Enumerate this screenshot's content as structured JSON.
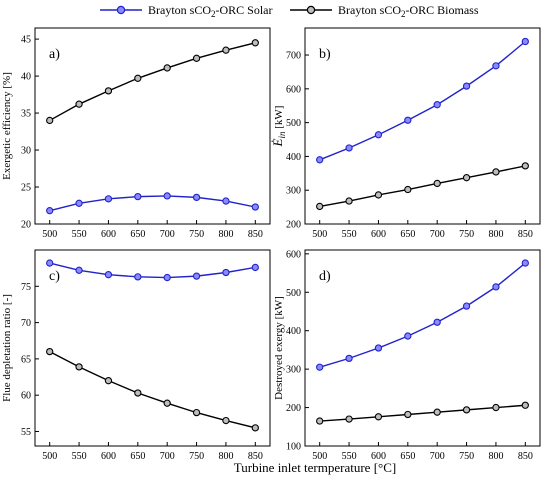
{
  "legend": {
    "placement": "top",
    "entries": [
      {
        "prefix": "Brayton sCO",
        "sub": "2",
        "suffix": "-ORC Solar",
        "color": "#2222cc",
        "marker_fill": "#8a8aff"
      },
      {
        "prefix": "Brayton sCO",
        "sub": "2",
        "suffix": "-ORC Biomass",
        "color": "#000000",
        "marker_fill": "#bdbdbd"
      }
    ]
  },
  "shared_xlabel": "Turbine inlet termperature [°C]",
  "chart_data": [
    {
      "type": "line",
      "panel": "a)",
      "ylabel": "Exergetic efficiency [%]",
      "x": [
        500,
        550,
        600,
        650,
        700,
        750,
        800,
        850
      ],
      "xticks": [
        500,
        550,
        600,
        650,
        700,
        750,
        800,
        850
      ],
      "xlim": [
        475,
        875
      ],
      "ylim": [
        20,
        46.5
      ],
      "yticks": [
        20,
        25,
        30,
        35,
        40,
        45
      ],
      "series": [
        {
          "name": "Brayton sCO2-ORC Solar",
          "values": [
            21.8,
            22.8,
            23.4,
            23.7,
            23.8,
            23.6,
            23.1,
            22.3
          ]
        },
        {
          "name": "Brayton sCO2-ORC Biomass",
          "values": [
            34.0,
            36.2,
            38.0,
            39.7,
            41.1,
            42.4,
            43.5,
            44.5
          ]
        }
      ]
    },
    {
      "type": "line",
      "panel": "b)",
      "ylabel_prefix": "Ė",
      "ylabel_sub": "in",
      "ylabel_suffix": " [kW]",
      "x": [
        500,
        550,
        600,
        650,
        700,
        750,
        800,
        850
      ],
      "xticks": [
        500,
        550,
        600,
        650,
        700,
        750,
        800,
        850
      ],
      "xlim": [
        475,
        875
      ],
      "ylim": [
        200,
        780
      ],
      "yticks": [
        200,
        300,
        400,
        500,
        600,
        700
      ],
      "series": [
        {
          "name": "Brayton sCO2-ORC Solar",
          "values": [
            390,
            425,
            464,
            507,
            553,
            608,
            668,
            740
          ]
        },
        {
          "name": "Brayton sCO2-ORC Biomass",
          "values": [
            252,
            268,
            286,
            302,
            320,
            337,
            354,
            372
          ]
        }
      ]
    },
    {
      "type": "line",
      "panel": "c)",
      "ylabel": "Flue depletation ratio [-]",
      "x": [
        500,
        550,
        600,
        650,
        700,
        750,
        800,
        850
      ],
      "xticks": [
        500,
        550,
        600,
        650,
        700,
        750,
        800,
        850
      ],
      "xlim": [
        475,
        875
      ],
      "ylim": [
        53,
        80
      ],
      "yticks": [
        55,
        60,
        65,
        70,
        75
      ],
      "series": [
        {
          "name": "Brayton sCO2-ORC Solar",
          "values": [
            78.2,
            77.2,
            76.6,
            76.3,
            76.2,
            76.4,
            76.9,
            77.6
          ]
        },
        {
          "name": "Brayton sCO2-ORC Biomass",
          "values": [
            66.0,
            63.9,
            62.0,
            60.3,
            58.9,
            57.6,
            56.5,
            55.5
          ]
        }
      ]
    },
    {
      "type": "line",
      "panel": "d)",
      "ylabel": "Destroyed exergy [kW]",
      "x": [
        500,
        550,
        600,
        650,
        700,
        750,
        800,
        850
      ],
      "xticks": [
        500,
        550,
        600,
        650,
        700,
        750,
        800,
        850
      ],
      "xlim": [
        475,
        875
      ],
      "ylim": [
        100,
        610
      ],
      "yticks": [
        100,
        200,
        300,
        400,
        500,
        600
      ],
      "series": [
        {
          "name": "Brayton sCO2-ORC Solar",
          "values": [
            305,
            328,
            355,
            386,
            422,
            464,
            514,
            576
          ]
        },
        {
          "name": "Brayton sCO2-ORC Biomass",
          "values": [
            165,
            170,
            176,
            182,
            188,
            194,
            200,
            206
          ]
        }
      ]
    }
  ]
}
